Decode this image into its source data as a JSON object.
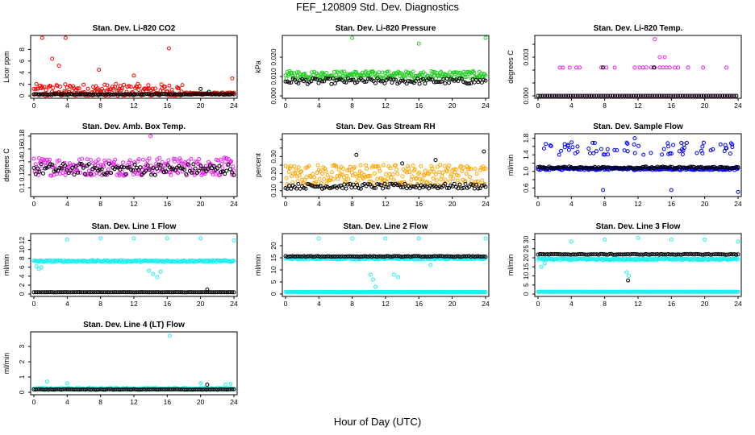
{
  "page": {
    "title": "FEF_120809  Std. Dev. Diagnostics",
    "xlabel": "Hour of Day (UTC)"
  },
  "colors": {
    "red": "#ff0000",
    "green": "#22cc22",
    "magenta": "#ee22ee",
    "orange": "#ffa500",
    "blue": "#0000ff",
    "cyan": "#22eeee",
    "black": "#000000"
  },
  "chart_data": [
    {
      "type": "scatter",
      "title": "Stan. Dev. Li-820 CO2",
      "ylabel": "Licor ppm",
      "xlim": [
        0,
        24
      ],
      "ylim": [
        0,
        10
      ],
      "x_ticks": [
        0,
        4,
        8,
        12,
        16,
        20,
        24
      ],
      "y_ticks": [
        0,
        2,
        4,
        6,
        8
      ],
      "series": [
        {
          "color": "red",
          "base": 0.3,
          "noise": 2.5,
          "spikes": [
            [
              3.8,
              10
            ],
            [
              1.0,
              10
            ],
            [
              16.2,
              8.2
            ],
            [
              2.2,
              6.4
            ],
            [
              3.0,
              5.2
            ],
            [
              7.8,
              4.5
            ],
            [
              12.0,
              3.5
            ],
            [
              23.8,
              3.0
            ]
          ],
          "taper": 18
        },
        {
          "color": "black",
          "base": 0.25,
          "noise": 0.1,
          "spikes": [
            [
              20.0,
              1.2
            ],
            [
              21.0,
              0.7
            ]
          ]
        }
      ]
    },
    {
      "type": "scatter",
      "title": "Stan. Dev. Li-820 Pressure",
      "ylabel": "kPa",
      "xlim": [
        0,
        24
      ],
      "ylim": [
        0,
        0.03
      ],
      "x_ticks": [
        0,
        4,
        8,
        12,
        16,
        20,
        24
      ],
      "y_ticks": [
        0,
        0.01,
        0.02
      ],
      "y_tick_labels": [
        "0.000",
        "0.010",
        "0.020"
      ],
      "series": [
        {
          "color": "green",
          "base": 0.01,
          "noise": 0.004,
          "spikes": [
            [
              8.0,
              0.03
            ],
            [
              16.0,
              0.027
            ],
            [
              24.0,
              0.03
            ]
          ]
        },
        {
          "color": "black",
          "base": 0.007,
          "noise": 0.003,
          "spikes": []
        }
      ]
    },
    {
      "type": "scatter",
      "title": "Stan. Dev. Li-820 Temp.",
      "ylabel": "degrees C",
      "xlim": [
        0,
        24
      ],
      "ylim": [
        0,
        0.0045
      ],
      "x_ticks": [
        0,
        4,
        8,
        12,
        16,
        20,
        24
      ],
      "y_ticks": [
        0,
        0.001,
        0.002,
        0.003,
        0.004
      ],
      "y_tick_labels": [
        "0.000",
        "",
        "",
        "0.003",
        ""
      ],
      "series": [
        {
          "color": "magenta",
          "levels": [
            0,
            0.0022
          ],
          "level2_points": [
            2.6,
            3.0,
            3.8,
            4.6,
            5.0,
            7.6,
            8.2,
            9.2,
            11.6,
            12.2,
            12.6,
            13.0,
            13.6,
            14.0,
            14.6,
            15.0,
            15.4,
            15.8,
            16.4,
            16.8,
            18.0,
            19.8,
            22.6
          ],
          "spikes": [
            [
              14.0,
              0.0044
            ],
            [
              14.6,
              0.003
            ],
            [
              15.2,
              0.003
            ]
          ]
        },
        {
          "color": "black",
          "levels": [
            0,
            0.0022
          ],
          "level2_points": [
            7.8,
            13.9
          ],
          "spikes": []
        }
      ]
    },
    {
      "type": "scatter",
      "title": "Stan. Dev. Amb. Box Temp.",
      "ylabel": "degrees C",
      "xlim": [
        0,
        24
      ],
      "ylim": [
        0.09,
        0.18
      ],
      "x_ticks": [
        0,
        4,
        8,
        12,
        16,
        20,
        24
      ],
      "y_ticks": [
        0.1,
        0.12,
        0.14,
        0.16,
        0.18
      ],
      "series": [
        {
          "color": "magenta",
          "base": 0.127,
          "noise": 0.028,
          "spikes": [
            [
              14.0,
              0.18
            ]
          ]
        },
        {
          "color": "black",
          "base": 0.125,
          "noise": 0.018,
          "spikes": []
        }
      ]
    },
    {
      "type": "scatter",
      "title": "Stan. Dev. Gas Stream RH",
      "ylabel": "percent",
      "xlim": [
        0,
        24
      ],
      "ylim": [
        0.08,
        0.42
      ],
      "x_ticks": [
        0,
        4,
        8,
        12,
        16,
        20,
        24
      ],
      "y_ticks": [
        0.1,
        0.15,
        0.2,
        0.25,
        0.3,
        0.35,
        0.4
      ],
      "y_tick_labels": [
        "0.10",
        "",
        "0.20",
        "",
        "0.30",
        "",
        ""
      ],
      "series": [
        {
          "color": "orange",
          "base": 0.17,
          "noise": 0.12,
          "spikes": []
        },
        {
          "color": "black",
          "base": 0.12,
          "noise": 0.03,
          "spikes": [
            [
              23.8,
              0.33
            ],
            [
              8.5,
              0.31
            ],
            [
              14.0,
              0.26
            ],
            [
              18.0,
              0.28
            ]
          ]
        }
      ]
    },
    {
      "type": "scatter",
      "title": "Stan. Dev. Sample Flow",
      "ylabel": "ml/min",
      "xlim": [
        0,
        24
      ],
      "ylim": [
        0.45,
        1.85
      ],
      "x_ticks": [
        0,
        4,
        8,
        12,
        16,
        20,
        24
      ],
      "y_ticks": [
        0.6,
        0.8,
        1.0,
        1.2,
        1.4,
        1.6,
        1.8
      ],
      "y_tick_labels": [
        "0.6",
        "",
        "1.0",
        "",
        "1.4",
        "",
        "1.8"
      ],
      "series": [
        {
          "color": "blue",
          "base": 1.05,
          "noise": 0.06,
          "upper_band": [
            1.4,
            1.7
          ],
          "spikes": [
            [
              7.8,
              0.55
            ],
            [
              16.0,
              0.55
            ],
            [
              24.0,
              0.5
            ],
            [
              11.6,
              1.8
            ]
          ]
        },
        {
          "color": "black",
          "base": 1.08,
          "noise": 0.05,
          "spikes": []
        }
      ]
    },
    {
      "type": "scatter",
      "title": "Stan. Dev. Line 1 Flow",
      "ylabel": "ml/min",
      "xlim": [
        0,
        24
      ],
      "ylim": [
        0,
        13
      ],
      "x_ticks": [
        0,
        4,
        8,
        12,
        16,
        20,
        24
      ],
      "y_ticks": [
        0,
        2,
        4,
        6,
        8,
        10,
        12
      ],
      "series": [
        {
          "color": "cyan",
          "base": 7.3,
          "noise": 0.4,
          "spikes": [
            [
              0.3,
              6.2
            ],
            [
              0.6,
              5.6
            ],
            [
              0.9,
              6.0
            ],
            [
              4.0,
              12.2
            ],
            [
              8.0,
              12.5
            ],
            [
              12.0,
              12.5
            ],
            [
              16.0,
              12.5
            ],
            [
              20.0,
              12.5
            ],
            [
              24.0,
              12.0
            ],
            [
              13.8,
              5.2
            ],
            [
              14.3,
              4.5
            ],
            [
              14.8,
              3.8
            ],
            [
              15.2,
              5.0
            ]
          ]
        },
        {
          "color": "black",
          "base": 0.4,
          "noise": 0.05,
          "spikes": [
            [
              20.8,
              1.0
            ]
          ]
        }
      ]
    },
    {
      "type": "scatter",
      "title": "Stan. Dev. Line 2 Flow",
      "ylabel": "ml/min",
      "xlim": [
        0,
        24
      ],
      "ylim": [
        0,
        24
      ],
      "x_ticks": [
        0,
        4,
        8,
        12,
        16,
        20,
        24
      ],
      "y_ticks": [
        0,
        5,
        10,
        15,
        20
      ],
      "series": [
        {
          "color": "cyan",
          "base": 14.5,
          "noise": 0.8,
          "spikes": [
            [
              4.0,
              23.0
            ],
            [
              8.0,
              23.0
            ],
            [
              12.0,
              23.0
            ],
            [
              16.0,
              23.0
            ],
            [
              24.0,
              23.0
            ],
            [
              10.2,
              8.0
            ],
            [
              10.5,
              6.0
            ],
            [
              10.8,
              3.0
            ],
            [
              13.0,
              8.0
            ],
            [
              13.5,
              7.0
            ],
            [
              17.4,
              12.0
            ]
          ]
        },
        {
          "color": "cyan",
          "base": 0.8,
          "noise": 0.1,
          "spikes": []
        },
        {
          "color": "black",
          "base": 15.5,
          "noise": 0.3,
          "spikes": []
        }
      ]
    },
    {
      "type": "scatter",
      "title": "Stan. Dev. Line 3 Flow",
      "ylabel": "ml/min",
      "xlim": [
        0,
        24
      ],
      "ylim": [
        0,
        32
      ],
      "x_ticks": [
        0,
        4,
        8,
        12,
        16,
        20,
        24
      ],
      "y_ticks": [
        0,
        5,
        10,
        15,
        20,
        25,
        30
      ],
      "series": [
        {
          "color": "cyan",
          "base": 19.0,
          "noise": 1.0,
          "spikes": [
            [
              4.0,
              29.0
            ],
            [
              8.0,
              30.0
            ],
            [
              12.0,
              31.0
            ],
            [
              16.0,
              30.0
            ],
            [
              20.0,
              30.0
            ],
            [
              24.0,
              29.0
            ],
            [
              0.4,
              15.0
            ],
            [
              0.8,
              17.0
            ],
            [
              10.6,
              12.0
            ],
            [
              10.9,
              10.0
            ]
          ]
        },
        {
          "color": "cyan",
          "base": 1.2,
          "noise": 0.1,
          "spikes": []
        },
        {
          "color": "black",
          "base": 21.8,
          "noise": 0.4,
          "spikes": [
            [
              10.8,
              7.5
            ]
          ]
        }
      ]
    },
    {
      "type": "scatter",
      "title": "Stan. Dev. Line 4 (LT) Flow",
      "ylabel": "ml/min",
      "xlim": [
        0,
        24
      ],
      "ylim": [
        0,
        3.8
      ],
      "x_ticks": [
        0,
        4,
        8,
        12,
        16,
        20,
        24
      ],
      "y_ticks": [
        0,
        1,
        2,
        3
      ],
      "series": [
        {
          "color": "cyan",
          "base": 0.22,
          "noise": 0.08,
          "spikes": [
            [
              16.3,
              3.7
            ],
            [
              1.6,
              0.7
            ],
            [
              4.0,
              0.6
            ],
            [
              20.0,
              0.6
            ],
            [
              23.0,
              0.5
            ],
            [
              23.6,
              0.55
            ]
          ]
        },
        {
          "color": "black",
          "base": 0.18,
          "noise": 0.04,
          "spikes": [
            [
              20.8,
              0.5
            ]
          ]
        }
      ]
    }
  ]
}
